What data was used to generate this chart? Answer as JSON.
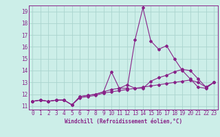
{
  "xlabel": "Windchill (Refroidissement éolien,°C)",
  "background_color": "#cceee8",
  "grid_color": "#aad4ce",
  "line_color": "#882288",
  "spine_color": "#882288",
  "xlim": [
    -0.5,
    23.5
  ],
  "ylim": [
    10.7,
    19.5
  ],
  "yticks": [
    11,
    12,
    13,
    14,
    15,
    16,
    17,
    18,
    19
  ],
  "xticks": [
    0,
    1,
    2,
    3,
    4,
    5,
    6,
    7,
    8,
    9,
    10,
    11,
    12,
    13,
    14,
    15,
    16,
    17,
    18,
    19,
    20,
    21,
    22,
    23
  ],
  "series1_x": [
    0,
    1,
    2,
    3,
    4,
    5,
    6,
    7,
    8,
    9,
    10,
    11,
    12,
    13,
    14,
    15,
    16,
    17,
    18,
    19,
    20,
    21,
    22,
    23
  ],
  "series1_y": [
    11.4,
    11.5,
    11.4,
    11.5,
    11.5,
    11.1,
    11.8,
    11.9,
    12.0,
    12.2,
    13.9,
    12.5,
    12.5,
    16.6,
    19.3,
    16.5,
    15.8,
    16.1,
    15.0,
    14.0,
    13.3,
    12.6,
    12.5,
    13.0
  ],
  "series2_x": [
    0,
    1,
    2,
    3,
    4,
    5,
    6,
    7,
    8,
    9,
    10,
    11,
    12,
    13,
    14,
    15,
    16,
    17,
    18,
    19,
    20,
    21,
    22,
    23
  ],
  "series2_y": [
    11.4,
    11.5,
    11.4,
    11.5,
    11.5,
    11.1,
    11.8,
    11.9,
    12.0,
    12.2,
    12.4,
    12.5,
    12.8,
    12.5,
    12.5,
    13.1,
    13.4,
    13.6,
    13.9,
    14.1,
    14.0,
    13.3,
    12.6,
    13.0
  ],
  "series3_x": [
    0,
    1,
    2,
    3,
    4,
    5,
    6,
    7,
    8,
    9,
    10,
    11,
    12,
    13,
    14,
    15,
    16,
    17,
    18,
    19,
    20,
    21,
    22,
    23
  ],
  "series3_y": [
    11.4,
    11.5,
    11.4,
    11.5,
    11.5,
    11.1,
    11.7,
    11.8,
    11.9,
    12.1,
    12.2,
    12.3,
    12.4,
    12.5,
    12.6,
    12.7,
    12.8,
    12.9,
    13.0,
    13.1,
    13.2,
    13.0,
    12.6,
    13.0
  ],
  "tick_fontsize": 5.5,
  "xlabel_fontsize": 5.5
}
